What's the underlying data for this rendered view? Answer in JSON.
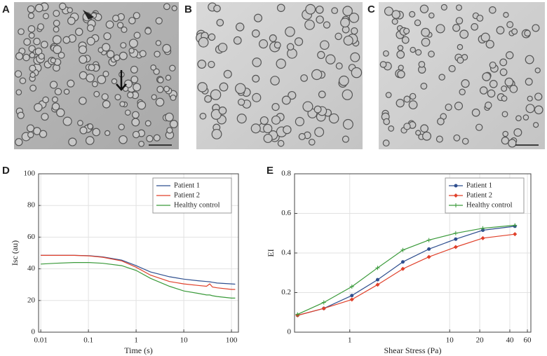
{
  "panel_labels": [
    "A",
    "B",
    "C"
  ],
  "chart_data": [
    {
      "type": "line",
      "label": "D",
      "xlabel": "Time (s)",
      "ylabel": "Isc (au)",
      "xscale": "log",
      "grid": true,
      "legend": "upper right",
      "xlim": [
        0.009,
        140
      ],
      "xticks": [
        0.01,
        0.1,
        1,
        10,
        100
      ],
      "ylim": [
        0,
        100
      ],
      "yticks": [
        0,
        20,
        40,
        60,
        80,
        100
      ],
      "x": [
        0.01,
        0.02,
        0.05,
        0.1,
        0.2,
        0.5,
        1,
        2,
        5,
        10,
        20,
        30,
        35,
        40,
        50,
        100,
        120
      ],
      "series": [
        {
          "name": "Patient 1",
          "color": "#2f4f8f",
          "values": [
            48.5,
            48.5,
            48.5,
            48.3,
            47.5,
            45.5,
            42,
            38,
            35,
            33.5,
            32.5,
            32,
            31.8,
            31.5,
            31,
            30.5,
            30.3
          ]
        },
        {
          "name": "Patient 2",
          "color": "#e0402a",
          "values": [
            48.5,
            48.5,
            48.5,
            48.2,
            47.3,
            45,
            41,
            36,
            32,
            30.5,
            29.5,
            29,
            30.5,
            28.5,
            28,
            27,
            27
          ]
        },
        {
          "name": "Healthy control",
          "color": "#3a9a3a",
          "values": [
            43,
            43.5,
            44,
            44,
            43.5,
            42,
            39,
            34,
            29,
            26,
            24.5,
            23.5,
            23.5,
            23,
            22.5,
            21.5,
            21.5
          ]
        }
      ]
    },
    {
      "type": "line",
      "label": "E",
      "xlabel": "Shear Stress (Pa)",
      "ylabel": "EI",
      "xscale": "log",
      "grid": true,
      "legend": "upper right",
      "xlim": [
        0.28,
        65
      ],
      "xticks": [
        1,
        10,
        20,
        40,
        60
      ],
      "ylim": [
        0,
        0.8
      ],
      "yticks": [
        0,
        0.2,
        0.4,
        0.6,
        0.8
      ],
      "x": [
        0.3,
        0.55,
        1.05,
        1.9,
        3.4,
        6.2,
        11.5,
        21.5,
        45
      ],
      "series": [
        {
          "name": "Patient 1",
          "color": "#2f4f8f",
          "marker": "circle",
          "values": [
            0.085,
            0.12,
            0.185,
            0.265,
            0.355,
            0.42,
            0.47,
            0.515,
            0.535
          ]
        },
        {
          "name": "Patient 2",
          "color": "#e0402a",
          "marker": "diamond",
          "values": [
            0.085,
            0.12,
            0.165,
            0.24,
            0.32,
            0.38,
            0.43,
            0.475,
            0.495
          ]
        },
        {
          "name": "Healthy control",
          "color": "#3a9a3a",
          "marker": "plus",
          "values": [
            0.09,
            0.15,
            0.23,
            0.325,
            0.415,
            0.465,
            0.5,
            0.525,
            0.54
          ]
        }
      ]
    }
  ]
}
